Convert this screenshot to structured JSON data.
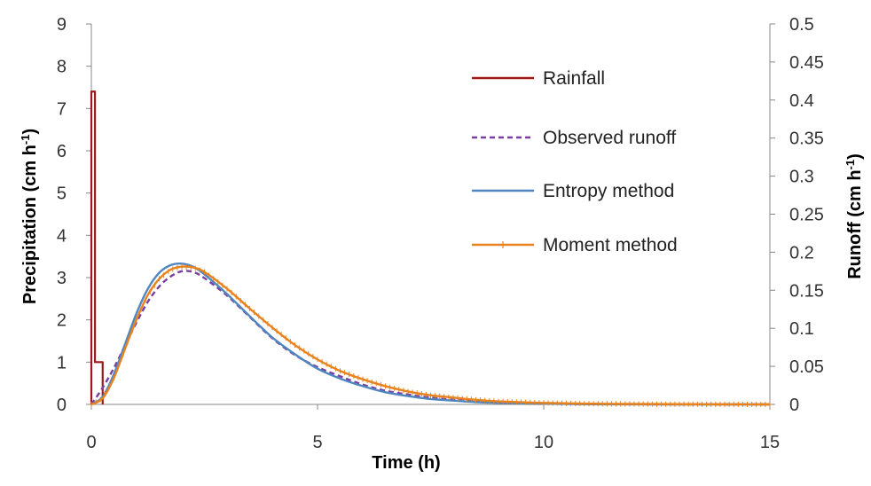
{
  "chart_data": {
    "type": "line",
    "xlabel": "Time (h)",
    "ylabel_left": {
      "main": "Precipitation (cm h",
      "sup": "-1",
      "close": ")"
    },
    "ylabel_right": {
      "main": "Runoff (cm h",
      "sup": "-1",
      "close": ")"
    },
    "xlim": [
      0,
      15
    ],
    "xticks": [
      0,
      5,
      10,
      15
    ],
    "ylim_left": [
      0,
      9
    ],
    "yticks_left": [
      0,
      1,
      2,
      3,
      4,
      5,
      6,
      7,
      8,
      9
    ],
    "ylim_right": [
      0,
      0.5
    ],
    "yticks_right": [
      "0",
      "0.05",
      "0.1",
      "0.15",
      "0.2",
      "0.25",
      "0.3",
      "0.35",
      "0.4",
      "0.45",
      "0.5"
    ],
    "grid": false,
    "legend_position": "top-right",
    "series": [
      {
        "name": "Rainfall",
        "axis": "left",
        "style": "solid",
        "color": "#a01818",
        "x": [
          0,
          0,
          0.08,
          0.08,
          0.25,
          0.25
        ],
        "y": [
          0,
          7.4,
          7.4,
          1.0,
          1.0,
          0
        ]
      },
      {
        "name": "Observed runoff",
        "axis": "right",
        "style": "dashed",
        "color": "#7a3ea0",
        "x": [
          0,
          0.25,
          0.5,
          0.75,
          1.0,
          1.25,
          1.5,
          1.75,
          2.0,
          2.25,
          2.5,
          3.0,
          3.5,
          4.0,
          4.5,
          5.0,
          5.5,
          6.0,
          6.5,
          7.0,
          7.5,
          8.0,
          8.5,
          9.0,
          10.0,
          11.0,
          12.0,
          13.0,
          14.0,
          15.0
        ],
        "y": [
          0,
          0.022,
          0.048,
          0.078,
          0.108,
          0.135,
          0.155,
          0.168,
          0.175,
          0.174,
          0.166,
          0.143,
          0.115,
          0.087,
          0.065,
          0.049,
          0.037,
          0.026,
          0.018,
          0.013,
          0.009,
          0.006,
          0.004,
          0.003,
          0.001,
          0.0005,
          0.0002,
          0.0001,
          0,
          0
        ]
      },
      {
        "name": "Entropy method",
        "axis": "right",
        "style": "solid",
        "color": "#4f86c0",
        "x": [
          0,
          0.25,
          0.5,
          0.75,
          1.0,
          1.25,
          1.5,
          1.75,
          2.0,
          2.25,
          2.5,
          3.0,
          3.5,
          4.0,
          4.5,
          5.0,
          5.5,
          6.0,
          6.5,
          7.0,
          7.5,
          8.0,
          8.5,
          9.0,
          10.0,
          11.0,
          12.0,
          13.0,
          14.0,
          15.0
        ],
        "y": [
          0,
          0.01,
          0.04,
          0.08,
          0.12,
          0.152,
          0.173,
          0.183,
          0.185,
          0.181,
          0.171,
          0.145,
          0.116,
          0.088,
          0.066,
          0.047,
          0.034,
          0.024,
          0.016,
          0.011,
          0.007,
          0.005,
          0.003,
          0.002,
          0.001,
          0.0003,
          0.0001,
          0,
          0,
          0
        ]
      },
      {
        "name": "Moment method",
        "axis": "right",
        "style": "solid-markers",
        "color": "#e8821e",
        "x": [
          0,
          0.25,
          0.5,
          0.75,
          1.0,
          1.25,
          1.5,
          1.75,
          2.0,
          2.25,
          2.5,
          3.0,
          3.5,
          4.0,
          4.5,
          5.0,
          5.5,
          6.0,
          6.5,
          7.0,
          7.5,
          8.0,
          8.5,
          9.0,
          10.0,
          11.0,
          12.0,
          13.0,
          14.0,
          15.0
        ],
        "y": [
          0,
          0.008,
          0.035,
          0.074,
          0.112,
          0.144,
          0.165,
          0.177,
          0.181,
          0.18,
          0.174,
          0.152,
          0.126,
          0.101,
          0.078,
          0.059,
          0.044,
          0.033,
          0.024,
          0.017,
          0.012,
          0.009,
          0.006,
          0.004,
          0.002,
          0.001,
          0.0006,
          0.0003,
          0.0001,
          0
        ]
      }
    ]
  }
}
